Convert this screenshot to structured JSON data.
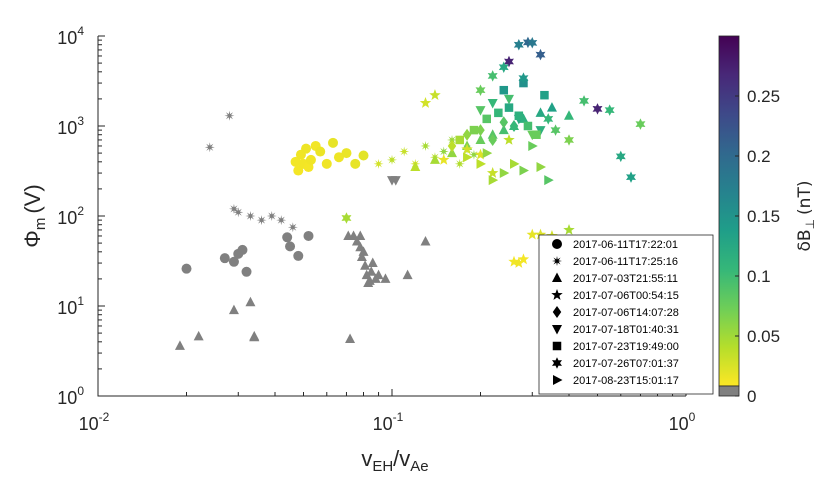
{
  "chart_data": {
    "type": "scatter",
    "x_scale": "log",
    "y_scale": "log",
    "xlim": [
      0.01,
      1
    ],
    "ylim": [
      1,
      10000
    ],
    "xlabel": {
      "base": "v",
      "num_sub": "EH",
      "den_base": "v",
      "den_sub": "Ae"
    },
    "ylabel": {
      "base": "Φ",
      "sub": "m",
      "unit": "(V)"
    },
    "x_ticks": [
      {
        "value": 0.01,
        "base": "10",
        "exp": "-2"
      },
      {
        "value": 0.1,
        "base": "10",
        "exp": "-1"
      },
      {
        "value": 1,
        "base": "10",
        "exp": "0"
      }
    ],
    "y_ticks": [
      {
        "value": 1,
        "base": "10",
        "exp": "0"
      },
      {
        "value": 10,
        "base": "10",
        "exp": "1"
      },
      {
        "value": 100,
        "base": "10",
        "exp": "2"
      },
      {
        "value": 1000,
        "base": "10",
        "exp": "3"
      },
      {
        "value": 10000,
        "base": "10",
        "exp": "4"
      }
    ],
    "colorbar": {
      "label": "δB⊥ (nT)",
      "label_base": "δB",
      "label_sub": "⊥",
      "label_unit": "(nT)",
      "range": [
        0,
        0.3
      ],
      "ticks": [
        {
          "value": 0,
          "label": "0"
        },
        {
          "value": 0.05,
          "label": "0.05"
        },
        {
          "value": 0.1,
          "label": "0.1"
        },
        {
          "value": 0.15,
          "label": "0.15"
        },
        {
          "value": 0.2,
          "label": "0.2"
        },
        {
          "value": 0.25,
          "label": "0.25"
        }
      ],
      "colormap": [
        "#fde725",
        "#b5de2b",
        "#6ece58",
        "#35b779",
        "#1f9e89",
        "#26828e",
        "#31688e",
        "#3e4989",
        "#482878",
        "#440154"
      ],
      "no_data_color": "#808080"
    },
    "legend": {
      "placement": "lower-right",
      "entries": [
        {
          "marker": "circle",
          "label": "2017-06-11T17:22:01"
        },
        {
          "marker": "asterisk",
          "label": "2017-06-11T17:25:16"
        },
        {
          "marker": "triangle-up",
          "label": "2017-07-03T21:55:11"
        },
        {
          "marker": "star5",
          "label": "2017-07-06T00:54:15"
        },
        {
          "marker": "diamond",
          "label": "2017-07-06T14:07:28"
        },
        {
          "marker": "triangle-down",
          "label": "2017-07-18T01:40:31"
        },
        {
          "marker": "square",
          "label": "2017-07-23T19:49:00"
        },
        {
          "marker": "hexagram",
          "label": "2017-07-26T07:01:37"
        },
        {
          "marker": "triangle-right",
          "label": "2017-08-23T15:01:17"
        }
      ]
    },
    "series": [
      {
        "marker": "circle",
        "x": [
          0.02,
          0.027,
          0.03,
          0.032,
          0.044,
          0.045,
          0.048,
          0.052,
          0.029,
          0.031,
          0.047,
          0.048,
          0.049,
          0.05,
          0.051,
          0.052,
          0.053,
          0.055,
          0.057,
          0.06,
          0.063,
          0.066,
          0.07,
          0.075,
          0.08
        ],
        "y": [
          26,
          34,
          38,
          24,
          58,
          46,
          36,
          60,
          31,
          42,
          400,
          320,
          480,
          380,
          560,
          350,
          420,
          600,
          520,
          380,
          650,
          450,
          500,
          380,
          470
        ],
        "dB": [
          null,
          null,
          null,
          null,
          null,
          null,
          null,
          null,
          null,
          null,
          0.005,
          0.004,
          0.006,
          0.005,
          0.007,
          0.004,
          0.006,
          0.005,
          0.008,
          0.006,
          0.01,
          0.007,
          0.009,
          0.01,
          0.012
        ]
      },
      {
        "marker": "asterisk",
        "x": [
          0.024,
          0.028,
          0.029,
          0.033,
          0.036,
          0.039,
          0.042,
          0.046,
          0.03,
          0.09,
          0.1,
          0.11,
          0.12,
          0.13,
          0.14,
          0.15,
          0.16,
          0.17,
          0.18,
          0.19
        ],
        "y": [
          580,
          1300,
          120,
          100,
          90,
          100,
          90,
          75,
          110,
          380,
          420,
          520,
          380,
          600,
          450,
          520,
          700,
          380,
          560,
          480
        ],
        "dB": [
          null,
          null,
          null,
          null,
          null,
          null,
          null,
          null,
          null,
          0.02,
          0.03,
          0.025,
          0.02,
          0.04,
          0.03,
          0.05,
          0.045,
          0.035,
          0.06,
          0.05
        ]
      },
      {
        "marker": "triangle-up",
        "x": [
          0.019,
          0.022,
          0.029,
          0.034,
          0.072,
          0.074,
          0.076,
          0.078,
          0.079,
          0.08,
          0.081,
          0.082,
          0.083,
          0.084,
          0.085,
          0.086,
          0.088,
          0.09,
          0.095,
          0.078,
          0.113,
          0.13,
          0.071,
          0.033,
          0.034,
          0.12,
          0.14,
          0.16,
          0.18,
          0.2,
          0.22,
          0.24,
          0.26,
          0.28,
          0.32,
          0.35,
          0.4
        ],
        "y": [
          3.6,
          4.6,
          9,
          4.6,
          4.3,
          60,
          52,
          45,
          35,
          40,
          28,
          22,
          18,
          19,
          24,
          30,
          20,
          22,
          20,
          60,
          22,
          52,
          60,
          11,
          4.5,
          350,
          420,
          500,
          600,
          700,
          800,
          900,
          1000,
          1200,
          1400,
          1600,
          1300
        ],
        "dB": [
          null,
          null,
          null,
          null,
          null,
          null,
          null,
          null,
          null,
          null,
          null,
          null,
          null,
          null,
          null,
          null,
          null,
          null,
          null,
          null,
          null,
          null,
          null,
          null,
          null,
          0.03,
          0.04,
          0.05,
          0.06,
          0.07,
          0.08,
          0.09,
          0.1,
          0.11,
          0.12,
          0.13,
          0.1
        ]
      },
      {
        "marker": "star5",
        "x": [
          0.26,
          0.27,
          0.28,
          0.3,
          0.32,
          0.35,
          0.4,
          0.15,
          0.18,
          0.2,
          0.22,
          0.25,
          0.13,
          0.14
        ],
        "y": [
          31,
          30,
          33,
          62,
          62,
          60,
          70,
          420,
          550,
          480,
          300,
          700,
          1800,
          2200
        ],
        "dB": [
          0.005,
          0.006,
          0.004,
          0.01,
          0.015,
          0.02,
          0.04,
          0.01,
          0.02,
          0.015,
          0.025,
          0.03,
          0.02,
          0.025
        ]
      },
      {
        "marker": "diamond",
        "x": [
          0.16,
          0.18,
          0.2,
          0.22,
          0.24,
          0.26
        ],
        "y": [
          600,
          800,
          900,
          700,
          1100,
          1000
        ],
        "dB": [
          0.03,
          0.05,
          0.06,
          0.07,
          0.08,
          0.1
        ]
      },
      {
        "marker": "triangle-down",
        "x": [
          0.1,
          0.103,
          0.2,
          0.22,
          0.25,
          0.27,
          0.3,
          0.32
        ],
        "y": [
          250,
          250,
          1500,
          1800,
          2000,
          1200,
          800,
          900
        ],
        "dB": [
          null,
          null,
          0.08,
          0.1,
          0.09,
          0.12,
          0.07,
          0.11
        ]
      },
      {
        "marker": "square",
        "x": [
          0.17,
          0.19,
          0.21,
          0.23,
          0.25,
          0.27,
          0.29,
          0.31,
          0.33,
          0.24,
          0.28
        ],
        "y": [
          700,
          900,
          1200,
          1400,
          1600,
          1300,
          1000,
          800,
          2200,
          2500,
          3000
        ],
        "dB": [
          0.04,
          0.06,
          0.08,
          0.1,
          0.12,
          0.11,
          0.09,
          0.07,
          0.13,
          0.14,
          0.15
        ]
      },
      {
        "marker": "hexagram",
        "x": [
          0.07,
          0.25,
          0.27,
          0.29,
          0.3,
          0.32,
          0.5,
          0.2,
          0.22,
          0.24,
          0.28,
          0.34,
          0.36,
          0.4,
          0.45,
          0.55,
          0.6,
          0.65,
          0.7
        ],
        "y": [
          95,
          5200,
          8000,
          8500,
          8400,
          6200,
          1550,
          2500,
          3600,
          4500,
          3400,
          1200,
          900,
          700,
          1900,
          1500,
          460,
          270,
          1050
        ],
        "dB": [
          0.04,
          0.27,
          0.17,
          0.2,
          0.18,
          0.21,
          0.27,
          0.07,
          0.09,
          0.12,
          0.14,
          0.1,
          0.08,
          0.06,
          0.09,
          0.1,
          0.12,
          0.13,
          0.07
        ]
      },
      {
        "marker": "triangle-right",
        "x": [
          0.2,
          0.22,
          0.24,
          0.26,
          0.28,
          0.3,
          0.32,
          0.34,
          0.18,
          0.21
        ],
        "y": [
          380,
          250,
          300,
          380,
          320,
          600,
          350,
          250,
          450,
          500
        ],
        "dB": [
          0.03,
          0.04,
          0.05,
          0.04,
          0.06,
          0.07,
          0.05,
          0.08,
          0.03,
          0.05
        ]
      }
    ]
  }
}
